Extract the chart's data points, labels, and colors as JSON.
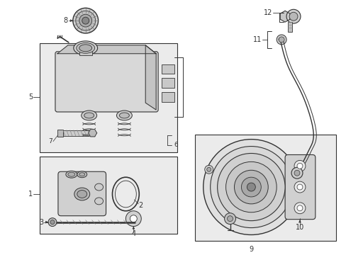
{
  "bg_color": "#ffffff",
  "lc": "#333333",
  "lc_light": "#888888",
  "fc_light": "#e8e8e8",
  "fc_mid": "#cccccc",
  "fc_dark": "#aaaaaa",
  "box_fc": "#ebebeb",
  "figsize": [
    4.89,
    3.6
  ],
  "dpi": 100
}
